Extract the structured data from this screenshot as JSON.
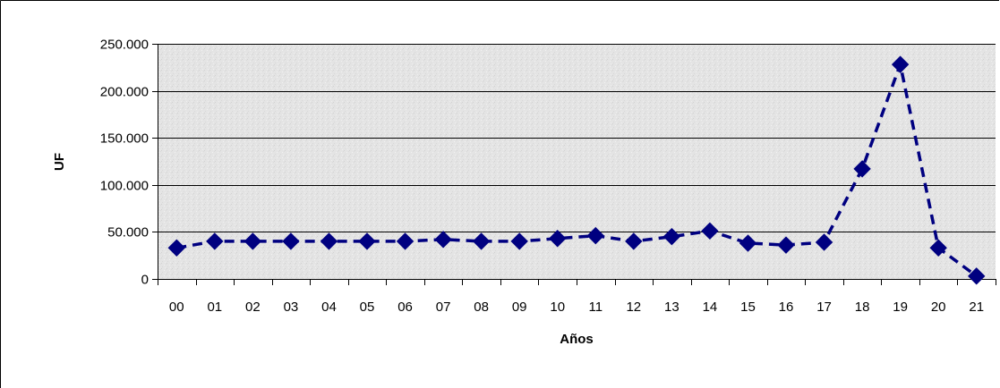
{
  "chart_data": {
    "type": "line",
    "title": "",
    "xlabel": "Años",
    "ylabel": "UF",
    "categories": [
      "00",
      "01",
      "02",
      "03",
      "04",
      "05",
      "06",
      "07",
      "08",
      "09",
      "10",
      "11",
      "12",
      "13",
      "14",
      "15",
      "16",
      "17",
      "18",
      "19",
      "20",
      "21"
    ],
    "series": [
      {
        "values": [
          33000,
          40000,
          40000,
          40000,
          40000,
          40000,
          40000,
          42000,
          40000,
          40000,
          43000,
          46000,
          40000,
          45000,
          51000,
          38000,
          36000,
          39000,
          117000,
          228000,
          33000,
          3000
        ]
      }
    ],
    "ylim": [
      0,
      250000
    ],
    "yticks": [
      0,
      50000,
      100000,
      150000,
      200000,
      250000
    ],
    "ytick_labels": [
      "0",
      "50.000",
      "100.000",
      "150.000",
      "200.000",
      "250.000"
    ],
    "grid": true,
    "line_style": "dashed",
    "marker": "diamond",
    "colors": {
      "series": "#000080",
      "grid": "#000000",
      "plot_bg": "#e6e6e6"
    }
  }
}
